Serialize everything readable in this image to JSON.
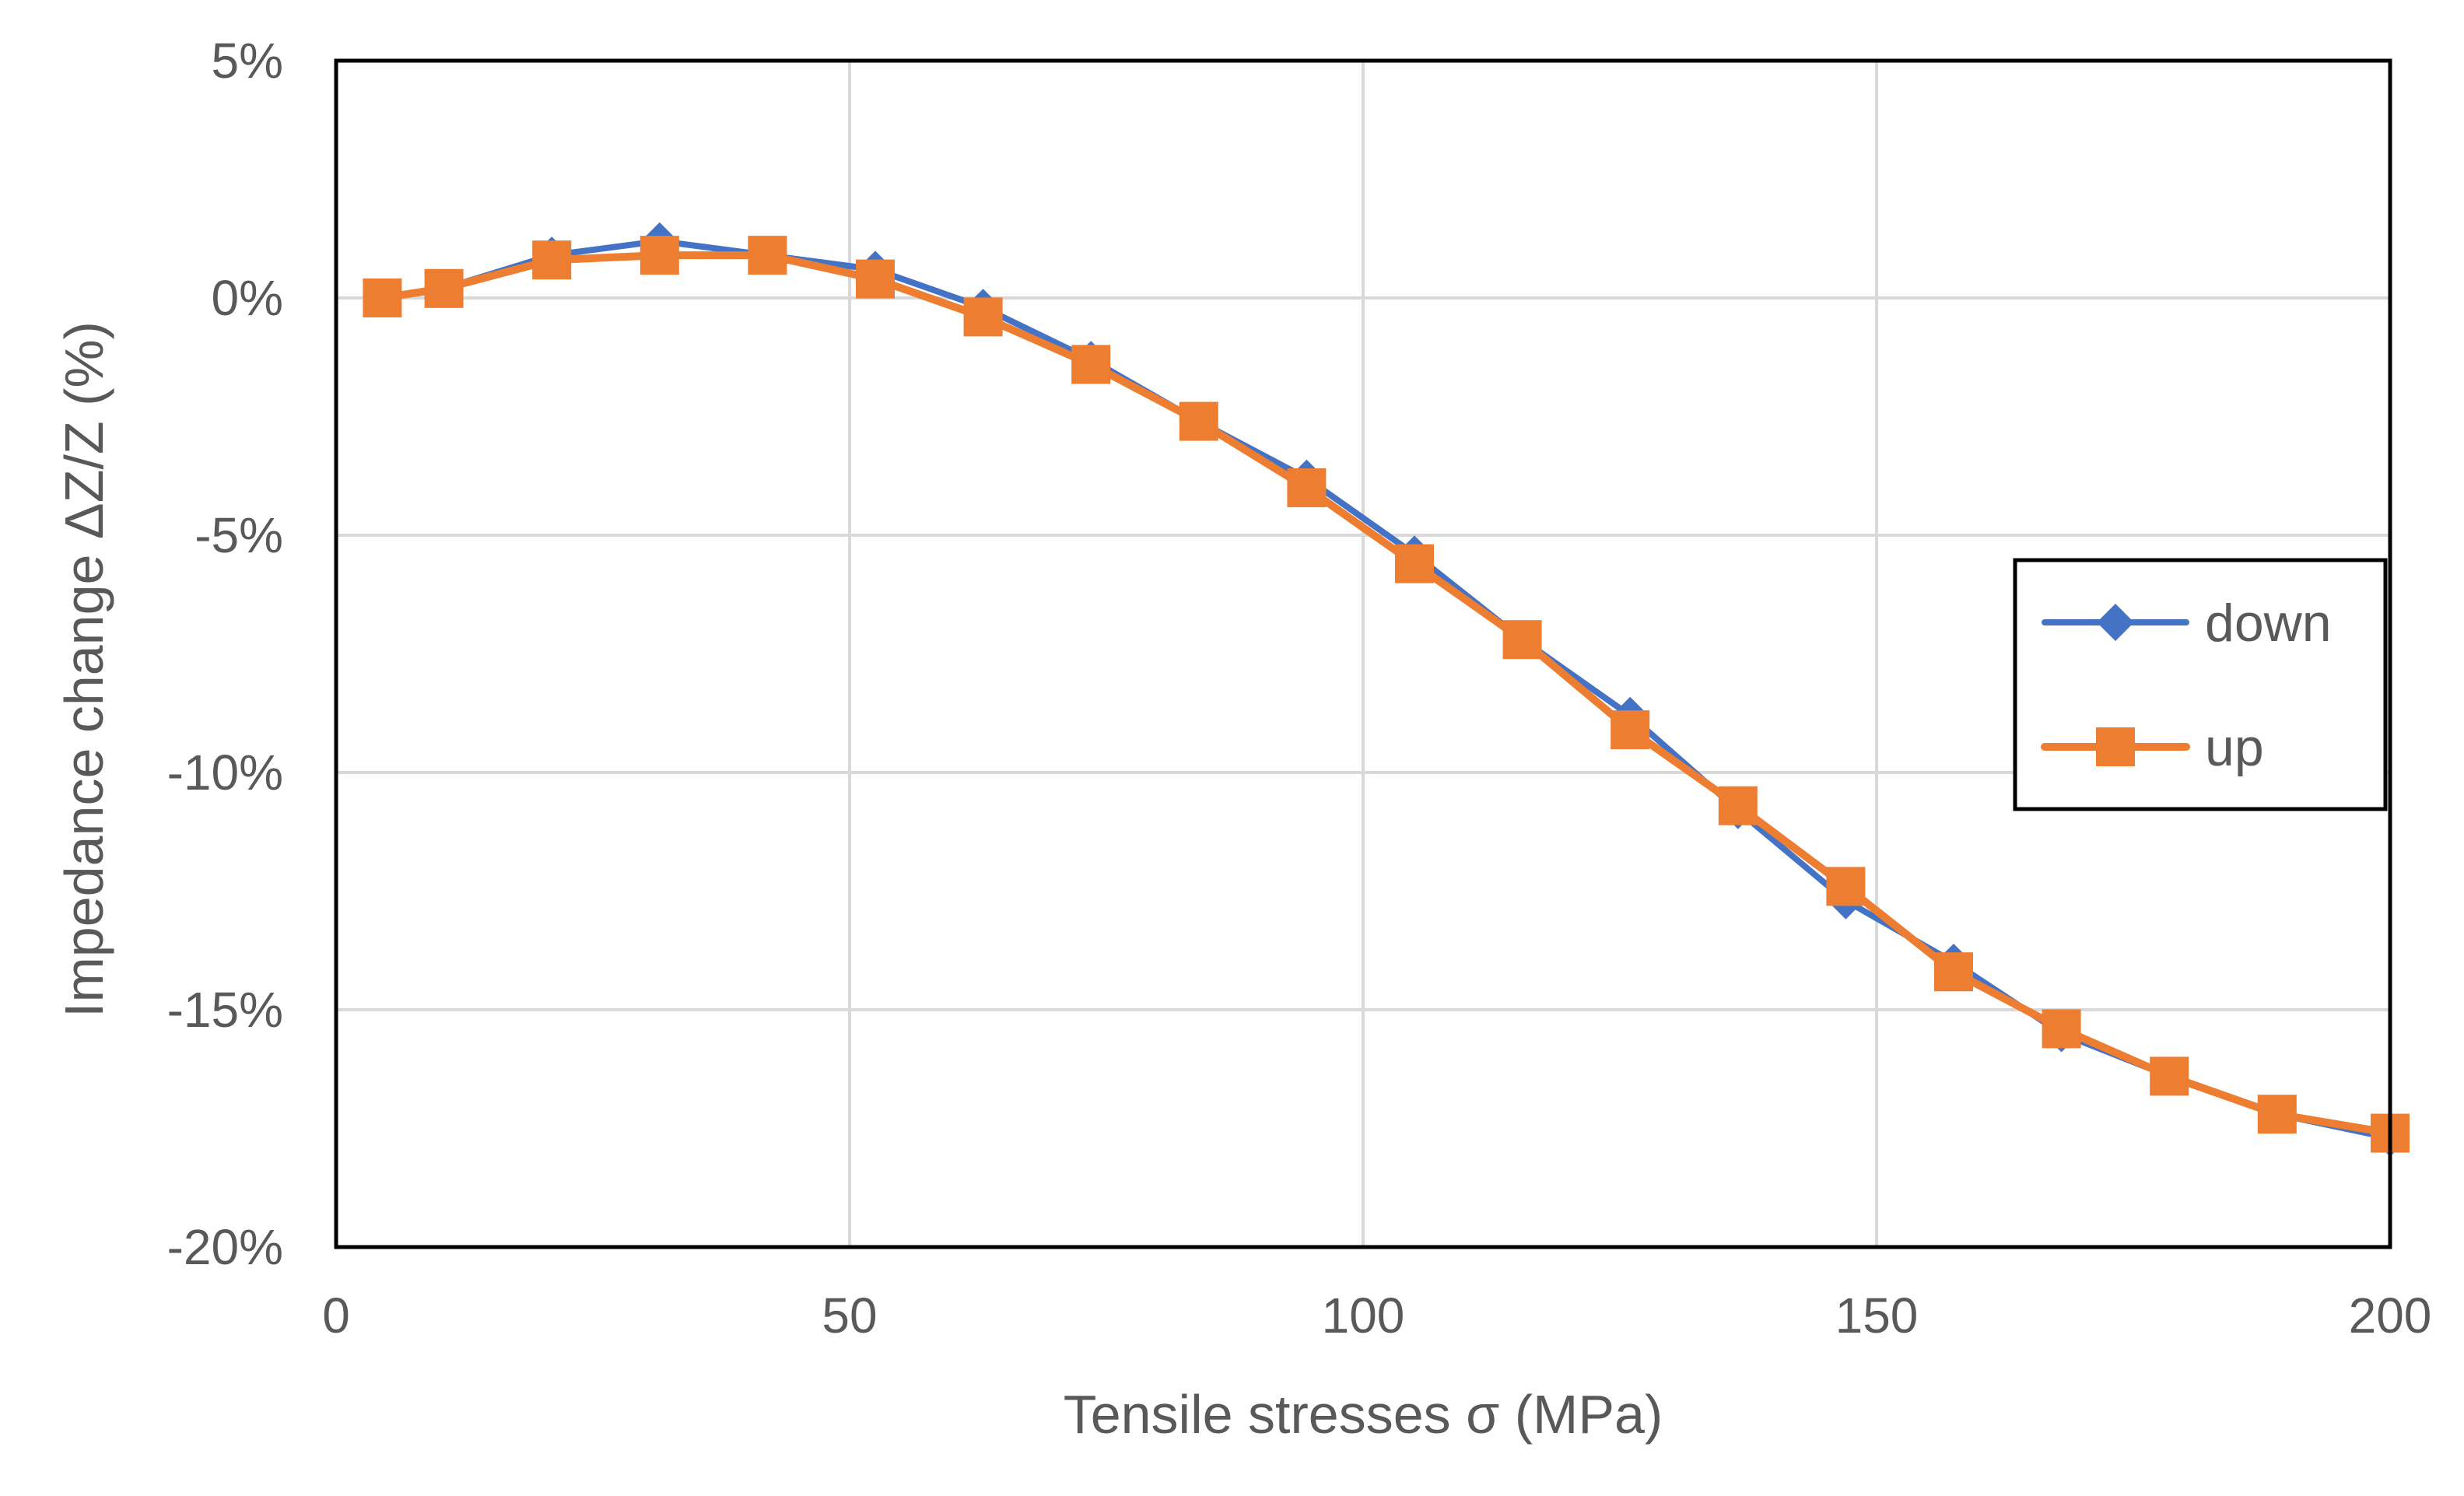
{
  "chart_data": {
    "type": "line",
    "title": "",
    "xlabel": "Tensile stresses σ (MPa)",
    "ylabel": "Impedance change ΔZ/Z (%)",
    "xlim": [
      0,
      200
    ],
    "ylim": [
      -20,
      5
    ],
    "x_ticks": [
      0,
      50,
      100,
      150,
      200
    ],
    "x_tick_labels": [
      "0",
      "50",
      "100",
      "150",
      "200"
    ],
    "y_ticks": [
      5,
      0,
      -5,
      -10,
      -15,
      -20
    ],
    "y_tick_labels": [
      "5%",
      "0%",
      "-5%",
      "-10%",
      "-15%",
      "-20%"
    ],
    "grid": true,
    "legend_position": "right",
    "series": [
      {
        "name": "down",
        "color": "#4472C4",
        "marker": "diamond",
        "x": [
          4.5,
          10.5,
          21,
          31.5,
          42,
          52.5,
          63,
          73.5,
          84,
          94.5,
          105,
          115.5,
          126,
          136.5,
          147,
          157.5,
          168,
          178.5,
          189,
          200
        ],
        "y": [
          0.0,
          0.2,
          0.9,
          1.2,
          0.9,
          0.6,
          -0.2,
          -1.3,
          -2.6,
          -3.8,
          -5.4,
          -7.2,
          -8.8,
          -10.8,
          -12.7,
          -14.0,
          -15.5,
          -16.4,
          -17.2,
          -17.7
        ]
      },
      {
        "name": "up",
        "color": "#ED7D31",
        "marker": "square",
        "x": [
          4.5,
          10.5,
          21,
          31.5,
          42,
          52.5,
          63,
          73.5,
          84,
          94.5,
          105,
          115.5,
          126,
          136.5,
          147,
          157.5,
          168,
          178.5,
          189,
          200
        ],
        "y": [
          0.0,
          0.2,
          0.8,
          0.9,
          0.9,
          0.4,
          -0.4,
          -1.4,
          -2.6,
          -4.0,
          -5.6,
          -7.2,
          -9.1,
          -10.7,
          -12.4,
          -14.2,
          -15.4,
          -16.4,
          -17.2,
          -17.6
        ]
      }
    ]
  }
}
